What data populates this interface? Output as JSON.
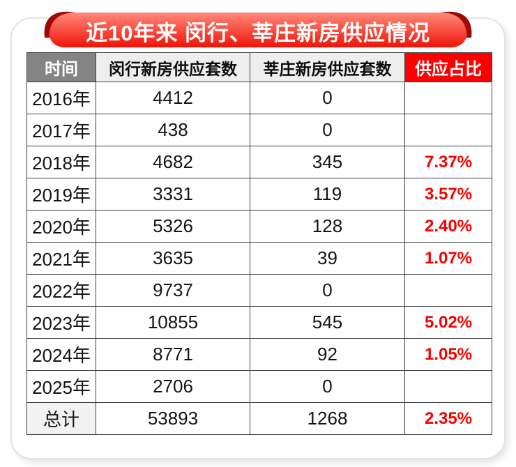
{
  "banner": {
    "title": "近10年来 闵行、莘庄新房供应情况"
  },
  "colors": {
    "ribbon_top": "#ff8a7b",
    "ribbon_bottom": "#f01307",
    "ribbon_fold": "#9e0a03",
    "header_time_bg": "#848484",
    "header_light_bg": "#eeeeee",
    "header_ratio_bg": "#fe0000",
    "percent_red": "#f70000",
    "total_cell_bg": "#f2f2f2",
    "grid_line": "#3d3d3d"
  },
  "chart_data": {
    "type": "table",
    "title": "近10年来 闵行、莘庄新房供应情况",
    "columns": [
      "时间",
      "闵行新房供应套数",
      "莘庄新房供应套数",
      "供应占比"
    ],
    "rows": [
      [
        "2016年",
        "4412",
        "0",
        ""
      ],
      [
        "2017年",
        "438",
        "0",
        ""
      ],
      [
        "2018年",
        "4682",
        "345",
        "7.37%"
      ],
      [
        "2019年",
        "3331",
        "119",
        "3.57%"
      ],
      [
        "2020年",
        "5326",
        "128",
        "2.40%"
      ],
      [
        "2021年",
        "3635",
        "39",
        "1.07%"
      ],
      [
        "2022年",
        "9737",
        "0",
        ""
      ],
      [
        "2023年",
        "10855",
        "545",
        "5.02%"
      ],
      [
        "2024年",
        "8771",
        "92",
        "1.05%"
      ],
      [
        "2025年",
        "2706",
        "0",
        ""
      ]
    ],
    "total_row": [
      "总计",
      "53893",
      "1268",
      "2.35%"
    ]
  }
}
